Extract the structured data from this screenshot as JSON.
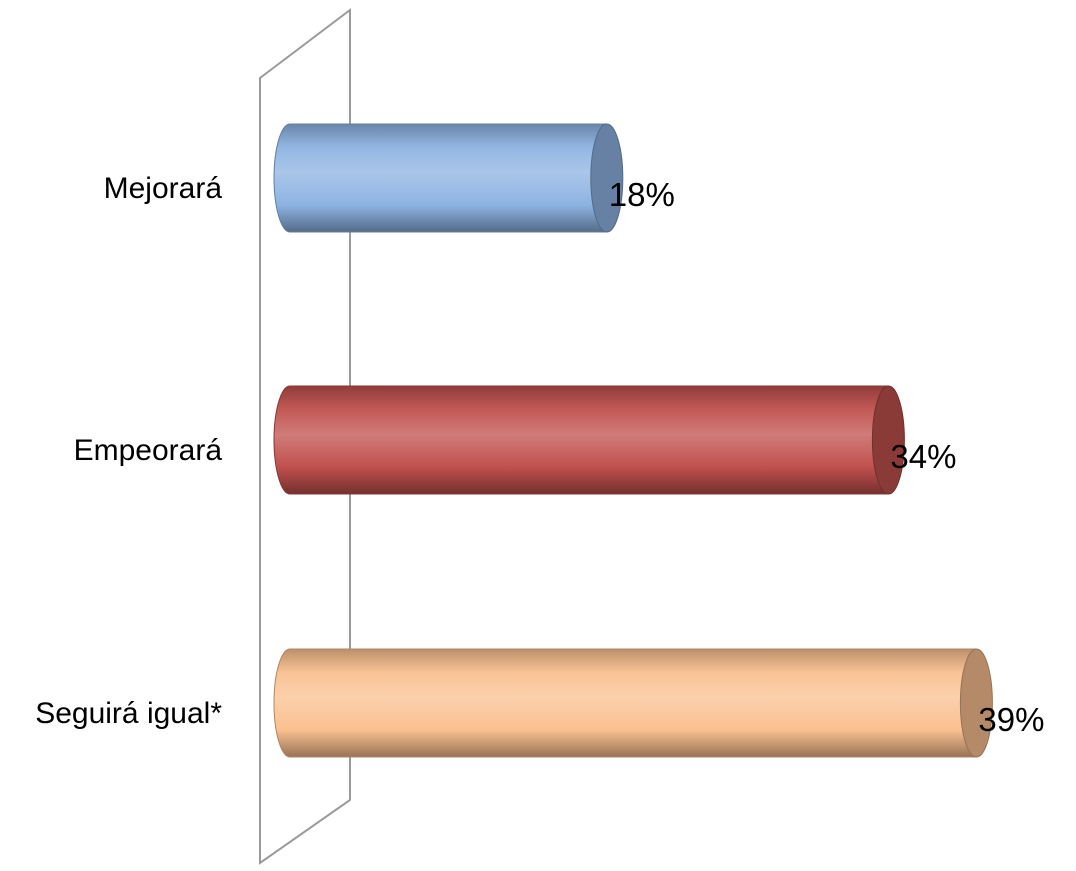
{
  "chart_data": {
    "type": "bar",
    "orientation": "horizontal",
    "style": "3d-cylinder",
    "categories": [
      "Mejorará",
      "Empeorará",
      "Seguirá igual*"
    ],
    "values": [
      18,
      34,
      39
    ],
    "value_labels": [
      "18%",
      "34%",
      "39%"
    ],
    "unit": "%",
    "colors": [
      "#8db3e2",
      "#c0504d",
      "#fac090"
    ],
    "xlim": [
      0,
      40
    ],
    "title": "",
    "xlabel": "",
    "ylabel": "",
    "grid": false,
    "legend": "none"
  }
}
